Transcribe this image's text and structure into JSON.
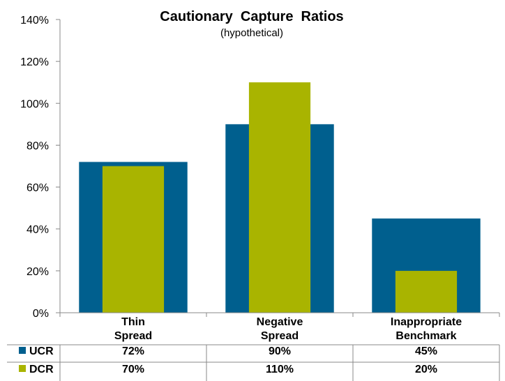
{
  "chart_data": {
    "type": "bar",
    "title": "Cautionary  Capture  Ratios",
    "subtitle": "(hypothetical)",
    "categories": [
      [
        "Thin",
        "Spread"
      ],
      [
        "Negative",
        "Spread"
      ],
      [
        "Inappropriate",
        "Benchmark"
      ]
    ],
    "series": [
      {
        "name": "UCR",
        "color": "#005f8e",
        "values": [
          72,
          90,
          45
        ],
        "labels": [
          "72%",
          "90%",
          "45%"
        ]
      },
      {
        "name": "DCR",
        "color": "#a9b400",
        "values": [
          70,
          110,
          20
        ],
        "labels": [
          "70%",
          "110%",
          "20%"
        ]
      }
    ],
    "ylim": [
      0,
      140
    ],
    "yticks": [
      "0%",
      "20%",
      "40%",
      "60%",
      "80%",
      "100%",
      "120%",
      "140%"
    ],
    "grid": false,
    "legend": "data-table-below"
  }
}
